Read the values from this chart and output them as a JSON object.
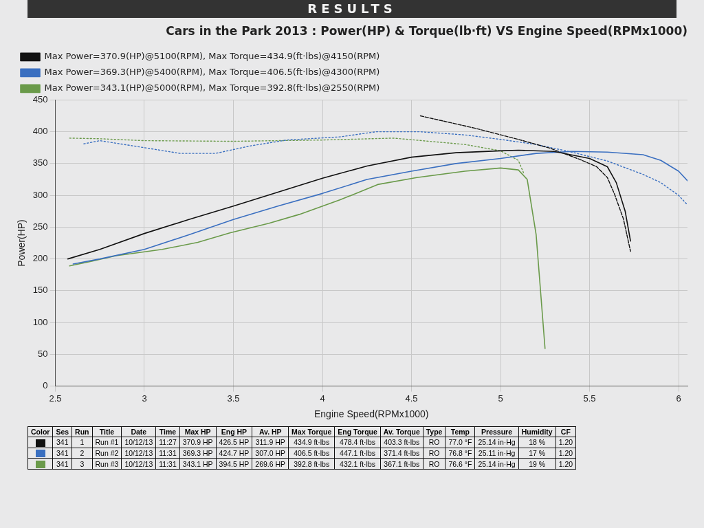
{
  "chart_data": {
    "type": "line",
    "title": "Cars in the Park 2013 : Power(HP) & Torque(lb·ft) VS Engine Speed(RPMx1000)",
    "subtitle": "RESULTS",
    "xlabel": "Engine Speed(RPMx1000)",
    "ylabel": "Power(HP)",
    "xlim": [
      2.5,
      6.05
    ],
    "xticks": [
      2.5,
      3,
      3.5,
      4,
      4.5,
      5,
      5.5,
      6
    ],
    "ylim": [
      0,
      450
    ],
    "yticks": [
      0,
      50,
      100,
      150,
      200,
      250,
      300,
      350,
      400,
      450
    ],
    "grid": true,
    "legend": "top left",
    "marker": "none",
    "series": [
      {
        "name": "Max Power=370.9(HP)@5100(RPM), Max Torque=434.9(ft·lbs)@4150(RPM)",
        "color": "#111111",
        "line_style": "solid",
        "x": [
          2.57,
          2.75,
          3.0,
          3.25,
          3.5,
          3.75,
          4.0,
          4.25,
          4.5,
          4.75,
          5.0,
          5.1,
          5.3,
          5.5,
          5.6,
          5.65,
          5.7,
          5.73
        ],
        "values": [
          200,
          215,
          240,
          262,
          283,
          305,
          327,
          346,
          360,
          367,
          370,
          371,
          369,
          358,
          345,
          320,
          275,
          228
        ]
      },
      {
        "name": "Max Power=369.3(HP)@5400(RPM), Max Torque=406.5(ft·lbs)@4300(RPM)",
        "color": "#3a6fc0",
        "line_style": "solid",
        "x": [
          2.6,
          2.75,
          3.0,
          3.25,
          3.5,
          3.75,
          4.0,
          4.25,
          4.5,
          4.75,
          5.0,
          5.2,
          5.4,
          5.6,
          5.8,
          5.9,
          6.0,
          6.05
        ],
        "values": [
          192,
          200,
          215,
          238,
          262,
          283,
          303,
          325,
          338,
          350,
          358,
          366,
          369,
          368,
          364,
          355,
          338,
          323
        ]
      },
      {
        "name": "Max Power=343.1(HP)@5000(RPM), Max Torque=392.8(ft·lbs)@2550(RPM)",
        "color": "#6a9a4a",
        "line_style": "solid",
        "x": [
          2.58,
          2.7,
          2.84,
          3.1,
          3.3,
          3.48,
          3.7,
          3.87,
          4.1,
          4.31,
          4.53,
          4.8,
          5.0,
          5.1,
          5.15,
          5.2,
          5.25
        ],
        "values": [
          189,
          196,
          205,
          215,
          226,
          241,
          256,
          270,
          293,
          317,
          328,
          338,
          343,
          340,
          325,
          238,
          59
        ]
      },
      {
        "color": "#111111",
        "line_style": "dashed",
        "x": [
          4.55,
          4.85,
          5.1,
          5.28,
          5.45,
          5.54,
          5.6,
          5.64,
          5.69,
          5.73
        ],
        "values": [
          425,
          406,
          388,
          374,
          356,
          345,
          328,
          302,
          263,
          212
        ]
      },
      {
        "color": "#3a6fc0",
        "line_style": "dotted",
        "x": [
          2.66,
          2.75,
          3.0,
          3.2,
          3.4,
          3.6,
          3.8,
          4.1,
          4.3,
          4.55,
          4.8,
          5.0,
          5.2,
          5.4,
          5.6,
          5.8,
          5.9,
          6.0,
          6.05
        ],
        "values": [
          381,
          386,
          375,
          366,
          366,
          378,
          387,
          392,
          400,
          400,
          395,
          388,
          380,
          368,
          354,
          333,
          320,
          300,
          285
        ]
      },
      {
        "color": "#6a9a4a",
        "line_style": "dotted",
        "x": [
          2.58,
          2.75,
          3.0,
          3.5,
          4.0,
          4.4,
          4.8,
          5.0,
          5.1,
          5.13
        ],
        "values": [
          390,
          389,
          386,
          385,
          387,
          390,
          380,
          370,
          355,
          335
        ]
      }
    ],
    "annotations": [
      "Color\tSes\tRun\tTitle\tDate\tTime\tMax HP\tEng HP\tAv. HP\tMax Torque\tEng Torque\tAv. Torque\tType\tTemp\tPressure\tHumidity\tCF",
      "341\t1\tRun #1\t10/12/13\t11:27\t370.9 HP\t426.5 HP\t311.9 HP\t434.9 ft·lbs\t478.4 ft·lbs\t403.3 ft·lbs\tRO\t77.0 °F\t25.14 in·Hg\t18 %\t1.20",
      "341\t2\tRun #2\t10/12/13\t11:31\t369.3 HP\t424.7 HP\t307.0 HP\t406.5 ft·lbs\t447.1 ft·lbs\t371.4 ft·lbs\tRO\t76.8 °F\t25.11 in·Hg\t17 %\t1.20",
      "341\t3\tRun #3\t10/12/13\t11:31\t343.1 HP\t394.5 HP\t269.6 HP\t392.8 ft·lbs\t432.1 ft·lbs\t367.1 ft·lbs\tRO\t76.6 °F\t25.14 in·Hg\t19 %\t1.20"
    ]
  }
}
